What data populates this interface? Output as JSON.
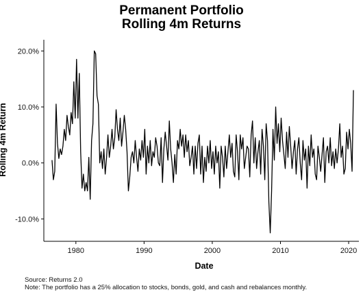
{
  "chart_data": {
    "type": "line",
    "title": "Permanent Portfolio",
    "subtitle": "Rolling 4m Returns",
    "xlabel": "Date",
    "ylabel": "Rolling 4m Return",
    "xlim": [
      1975.3,
      2021.5
    ],
    "ylim": [
      -14,
      22
    ],
    "x_ticks": [
      1980,
      1990,
      2000,
      2010,
      2020
    ],
    "y_ticks": [
      -10,
      0,
      10,
      20
    ],
    "y_tick_labels": [
      "-10.0%",
      "0.0%",
      "10.0%",
      "20.0%"
    ],
    "grid": false,
    "series": [
      {
        "x": [
          1976.5,
          1976.7,
          1976.9,
          1977.1,
          1977.3,
          1977.5,
          1977.7,
          1977.9,
          1978.1,
          1978.3,
          1978.5,
          1978.7,
          1978.9,
          1979.1,
          1979.3,
          1979.5,
          1979.7,
          1979.9,
          1980.1,
          1980.3,
          1980.5,
          1980.7,
          1980.9,
          1981.1,
          1981.3,
          1981.5,
          1981.7,
          1981.9,
          1982.1,
          1982.3,
          1982.5,
          1982.7,
          1982.9,
          1983.1,
          1983.3,
          1983.5,
          1983.7,
          1983.9,
          1984.1,
          1984.3,
          1984.5,
          1984.7,
          1984.9,
          1985.1,
          1985.3,
          1985.5,
          1985.7,
          1985.9,
          1986.1,
          1986.3,
          1986.5,
          1986.7,
          1986.9,
          1987.1,
          1987.3,
          1987.5,
          1987.7,
          1987.9,
          1988.1,
          1988.3,
          1988.5,
          1988.7,
          1988.9,
          1989.1,
          1989.3,
          1989.5,
          1989.7,
          1989.9,
          1990.1,
          1990.3,
          1990.5,
          1990.7,
          1990.9,
          1991.1,
          1991.3,
          1991.5,
          1991.7,
          1991.9,
          1992.1,
          1992.3,
          1992.5,
          1992.7,
          1992.9,
          1993.1,
          1993.3,
          1993.5,
          1993.7,
          1993.9,
          1994.1,
          1994.3,
          1994.5,
          1994.7,
          1994.9,
          1995.1,
          1995.3,
          1995.5,
          1995.7,
          1995.9,
          1996.1,
          1996.3,
          1996.5,
          1996.7,
          1996.9,
          1997.1,
          1997.3,
          1997.5,
          1997.7,
          1997.9,
          1998.1,
          1998.3,
          1998.5,
          1998.7,
          1998.9,
          1999.1,
          1999.3,
          1999.5,
          1999.7,
          1999.9,
          2000.1,
          2000.3,
          2000.5,
          2000.7,
          2000.9,
          2001.1,
          2001.3,
          2001.5,
          2001.7,
          2001.9,
          2002.1,
          2002.3,
          2002.5,
          2002.7,
          2002.9,
          2003.1,
          2003.3,
          2003.5,
          2003.7,
          2003.9,
          2004.1,
          2004.3,
          2004.5,
          2004.7,
          2004.9,
          2005.1,
          2005.3,
          2005.5,
          2005.7,
          2005.9,
          2006.1,
          2006.3,
          2006.5,
          2006.7,
          2006.9,
          2007.1,
          2007.3,
          2007.5,
          2007.7,
          2007.9,
          2008.1,
          2008.3,
          2008.5,
          2008.7,
          2008.9,
          2009.1,
          2009.3,
          2009.5,
          2009.7,
          2009.9,
          2010.1,
          2010.3,
          2010.5,
          2010.7,
          2010.9,
          2011.1,
          2011.3,
          2011.5,
          2011.7,
          2011.9,
          2012.1,
          2012.3,
          2012.5,
          2012.7,
          2012.9,
          2013.1,
          2013.3,
          2013.5,
          2013.7,
          2013.9,
          2014.1,
          2014.3,
          2014.5,
          2014.7,
          2014.9,
          2015.1,
          2015.3,
          2015.5,
          2015.7,
          2015.9,
          2016.1,
          2016.3,
          2016.5,
          2016.7,
          2016.9,
          2017.1,
          2017.3,
          2017.5,
          2017.7,
          2017.9,
          2018.1,
          2018.3,
          2018.5,
          2018.7,
          2018.9,
          2019.1,
          2019.3,
          2019.5,
          2019.7,
          2019.9,
          2020.1,
          2020.3,
          2020.5,
          2020.7
        ],
        "y": [
          0.5,
          -3.0,
          -1.5,
          10.5,
          3.5,
          0.8,
          2.5,
          1.5,
          3.0,
          6.0,
          4.0,
          8.5,
          6.5,
          5.0,
          9.0,
          7.0,
          14.5,
          8.0,
          18.5,
          8.0,
          16.0,
          2.0,
          -4.5,
          -2.0,
          -5.0,
          -3.5,
          -5.0,
          1.0,
          -6.5,
          4.0,
          7.0,
          20.0,
          19.5,
          12.0,
          10.5,
          0.0,
          2.0,
          -1.0,
          2.5,
          -2.0,
          1.0,
          5.0,
          1.0,
          3.0,
          6.0,
          2.5,
          4.5,
          9.5,
          6.0,
          4.0,
          8.0,
          3.0,
          5.5,
          8.5,
          6.0,
          2.0,
          -5.0,
          -2.5,
          1.0,
          2.0,
          0.0,
          4.0,
          1.0,
          -1.5,
          2.5,
          0.5,
          4.0,
          1.0,
          6.0,
          -2.0,
          3.0,
          0.0,
          4.0,
          -0.5,
          2.0,
          1.0,
          4.5,
          3.0,
          0.0,
          -0.5,
          4.5,
          -3.5,
          2.5,
          5.5,
          3.0,
          0.5,
          7.5,
          2.5,
          0.0,
          -3.5,
          1.5,
          -2.0,
          4.0,
          2.5,
          6.0,
          3.0,
          5.0,
          1.0,
          5.0,
          2.0,
          4.0,
          -0.5,
          1.0,
          3.0,
          -2.0,
          3.0,
          -1.0,
          3.5,
          5.0,
          -2.0,
          3.0,
          -3.5,
          1.0,
          -1.5,
          3.0,
          0.0,
          4.0,
          -1.0,
          2.0,
          -2.0,
          3.0,
          0.0,
          2.0,
          -4.5,
          3.0,
          1.0,
          -2.5,
          3.0,
          -1.0,
          2.0,
          5.0,
          1.0,
          3.5,
          -1.5,
          -2.5,
          5.0,
          2.0,
          -3.0,
          5.0,
          2.5,
          4.5,
          -1.0,
          1.0,
          3.0,
          2.5,
          -2.5,
          5.0,
          7.5,
          0.0,
          4.5,
          -1.0,
          2.0,
          4.0,
          -2.0,
          6.0,
          3.0,
          -3.0,
          7.0,
          4.0,
          -7.0,
          -12.5,
          -5.0,
          6.0,
          0.5,
          10.0,
          3.5,
          7.0,
          2.0,
          8.0,
          4.0,
          1.5,
          -1.0,
          5.5,
          1.0,
          6.5,
          3.0,
          -1.0,
          2.0,
          4.0,
          -2.0,
          2.5,
          4.5,
          0.0,
          -3.0,
          4.0,
          0.5,
          2.5,
          -4.5,
          3.0,
          -0.5,
          5.0,
          1.0,
          2.5,
          -2.0,
          -3.0,
          3.0,
          1.0,
          -1.5,
          1.5,
          4.5,
          -3.5,
          2.0,
          3.0,
          0.0,
          4.5,
          -0.5,
          2.0,
          -1.0,
          2.5,
          0.0,
          2.5,
          7.0,
          1.0,
          3.0,
          -2.0,
          -1.0,
          5.5,
          2.5,
          6.0,
          3.5,
          -1.5,
          13.0
        ]
      }
    ]
  },
  "footer": {
    "source": "Source: Returns 2.0",
    "note": "Note: The portfolio has a 25% allocation to stocks, bonds, gold, and cash and rebalances monthly."
  }
}
